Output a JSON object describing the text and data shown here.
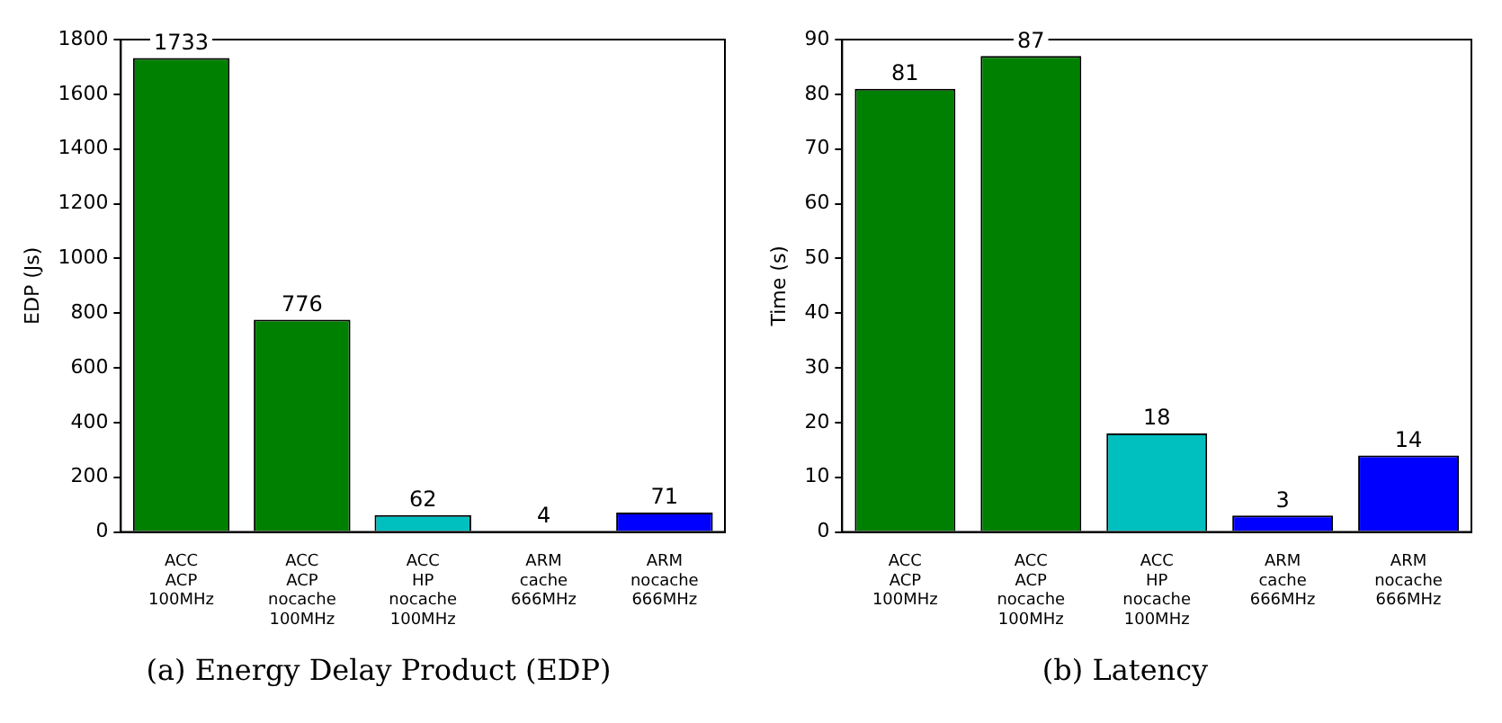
{
  "chart_data": [
    {
      "type": "bar",
      "title": "(a) Energy Delay Product (EDP)",
      "ylabel": "EDP (Js)",
      "categories": [
        "ACC\nACP\n100MHz",
        "ACC\nACP\nnocache\n100MHz",
        "ACC\nHP\nnocache\n100MHz",
        "ARM\ncache\n666MHz",
        "ARM\nnocache\n666MHz"
      ],
      "values": [
        1733,
        776,
        62,
        4,
        71
      ],
      "colors": [
        "#008000",
        "#008000",
        "#00bfbf",
        "#0000ff",
        "#0000ff"
      ],
      "ylim": [
        0,
        1800
      ],
      "yticks": [
        0,
        200,
        400,
        600,
        800,
        1000,
        1200,
        1400,
        1600,
        1800
      ],
      "data_labels": true
    },
    {
      "type": "bar",
      "title": "(b) Latency",
      "ylabel": "Time (s)",
      "categories": [
        "ACC\nACP\n100MHz",
        "ACC\nACP\nnocache\n100MHz",
        "ACC\nHP\nnocache\n100MHz",
        "ARM\ncache\n666MHz",
        "ARM\nnocache\n666MHz"
      ],
      "values": [
        81,
        87,
        18,
        3,
        14
      ],
      "data_labels": true,
      "colors": [
        "#008000",
        "#008000",
        "#00bfbf",
        "#0000ff",
        "#0000ff"
      ],
      "ylim": [
        0,
        90
      ],
      "yticks": [
        0,
        10,
        20,
        30,
        40,
        50,
        60,
        70,
        80,
        90
      ]
    }
  ]
}
